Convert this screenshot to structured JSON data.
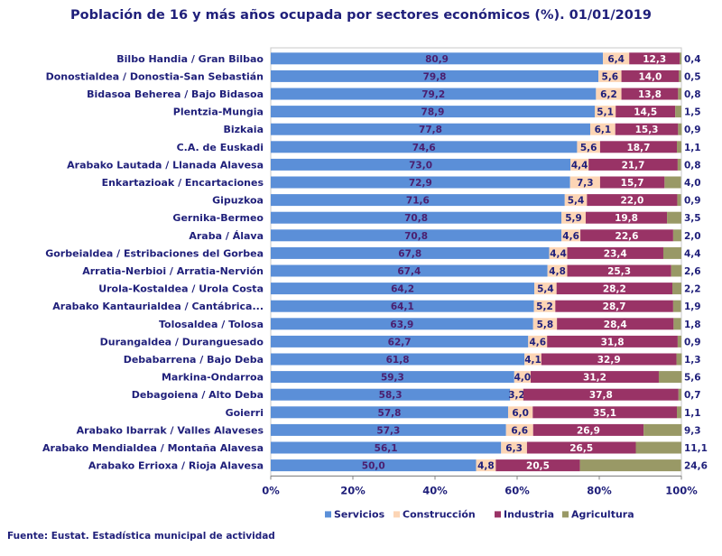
{
  "colors": {
    "servicios": "#5b8fd8",
    "construccion": "#fcd5b5",
    "industria": "#993366",
    "agricultura": "#999966",
    "title_text": "#1f1f7a",
    "label_text": "#1f1f7a",
    "service_value_text": "#4b1f6f",
    "industry_value_text": "#ffffff"
  },
  "chart_data": {
    "type": "bar",
    "orientation": "horizontal",
    "stacked": "percent",
    "title": "Población de 16 y más años ocupada por sectores económicos (%). 01/01/2019",
    "categories": [
      "Bilbo Handia / Gran Bilbao",
      "Donostialdea / Donostia-San Sebastián",
      "Bidasoa Beherea / Bajo Bidasoa",
      "Plentzia-Mungia",
      "Bizkaia",
      "C.A. de Euskadi",
      "Arabako Lautada / Llanada Alavesa",
      "Enkartazioak / Encartaciones",
      "Gipuzkoa",
      "Gernika-Bermeo",
      "Araba / Álava",
      "Gorbeialdea / Estribaciones del Gorbea",
      "Arratia-Nerbioi / Arratia-Nervión",
      "Urola-Kostaldea / Urola Costa",
      "Arabako Kantaurialdea / Cantábrica...",
      "Tolosaldea / Tolosa",
      "Durangaldea / Duranguesado",
      "Debabarrena / Bajo Deba",
      "Markina-Ondarroa",
      "Debagoiena / Alto Deba",
      "Goierri",
      "Arabako Ibarrak / Valles Alaveses",
      "Arabako Mendialdea / Montaña Alavesa",
      "Arabako Errioxa / Rioja Alavesa"
    ],
    "series": [
      {
        "key": "servicios",
        "name": "Servicios",
        "values": [
          80.9,
          79.8,
          79.2,
          78.9,
          77.8,
          74.6,
          73.0,
          72.9,
          71.6,
          70.8,
          70.8,
          67.8,
          67.4,
          64.2,
          64.1,
          63.9,
          62.7,
          61.8,
          59.3,
          58.3,
          57.8,
          57.3,
          56.1,
          50.0
        ],
        "labels": [
          "80,9",
          "79,8",
          "79,2",
          "78,9",
          "77,8",
          "74,6",
          "73,0",
          "72,9",
          "71,6",
          "70,8",
          "70,8",
          "67,8",
          "67,4",
          "64,2",
          "64,1",
          "63,9",
          "62,7",
          "61,8",
          "59,3",
          "58,3",
          "57,8",
          "57,3",
          "56,1",
          "50,0"
        ]
      },
      {
        "key": "construccion",
        "name": "Construcción",
        "values": [
          6.4,
          5.6,
          6.2,
          5.1,
          6.1,
          5.6,
          4.4,
          7.3,
          5.4,
          5.9,
          4.6,
          4.4,
          4.8,
          5.4,
          5.2,
          5.8,
          4.6,
          4.1,
          4.0,
          3.2,
          6.0,
          6.6,
          6.3,
          4.8
        ],
        "labels": [
          "6,4",
          "5,6",
          "6,2",
          "5,1",
          "6,1",
          "5,6",
          "4,4",
          "7,3",
          "5,4",
          "5,9",
          "4,6",
          "4,4",
          "4,8",
          "5,4",
          "5,2",
          "5,8",
          "4,6",
          "4,1",
          "4,0",
          "3,2",
          "6,0",
          "6,6",
          "6,3",
          "4,8"
        ]
      },
      {
        "key": "industria",
        "name": "Industria",
        "values": [
          12.3,
          14.0,
          13.8,
          14.5,
          15.3,
          18.7,
          21.7,
          15.7,
          22.0,
          19.8,
          22.6,
          23.4,
          25.3,
          28.2,
          28.7,
          28.4,
          31.8,
          32.9,
          31.2,
          37.8,
          35.1,
          26.9,
          26.5,
          20.5
        ],
        "labels": [
          "12,3",
          "14,0",
          "13,8",
          "14,5",
          "15,3",
          "18,7",
          "21,7",
          "15,7",
          "22,0",
          "19,8",
          "22,6",
          "23,4",
          "25,3",
          "28,2",
          "28,7",
          "28,4",
          "31,8",
          "32,9",
          "31,2",
          "37,8",
          "35,1",
          "26,9",
          "26,5",
          "20,5"
        ]
      },
      {
        "key": "agricultura",
        "name": "Agricultura",
        "values": [
          0.4,
          0.5,
          0.8,
          1.5,
          0.9,
          1.1,
          0.8,
          4.0,
          0.9,
          3.5,
          2.0,
          4.4,
          2.6,
          2.2,
          1.9,
          1.8,
          0.9,
          1.3,
          5.6,
          0.7,
          1.1,
          9.3,
          11.1,
          24.6
        ],
        "labels": [
          "0,4",
          "0,5",
          "0,8",
          "1,5",
          "0,9",
          "1,1",
          "0,8",
          "4,0",
          "0,9",
          "3,5",
          "2,0",
          "4,4",
          "2,6",
          "2,2",
          "1,9",
          "1,8",
          "0,9",
          "1,3",
          "5,6",
          "0,7",
          "1,1",
          "9,3",
          "11,1",
          "24,6"
        ]
      }
    ],
    "xlim": [
      0,
      100
    ],
    "xticks": [
      "0%",
      "20%",
      "40%",
      "60%",
      "80%",
      "100%"
    ],
    "xlabel": "",
    "ylabel": "",
    "legend": "bottom"
  },
  "source": "Fuente: Eustat. Estadística municipal de actividad"
}
